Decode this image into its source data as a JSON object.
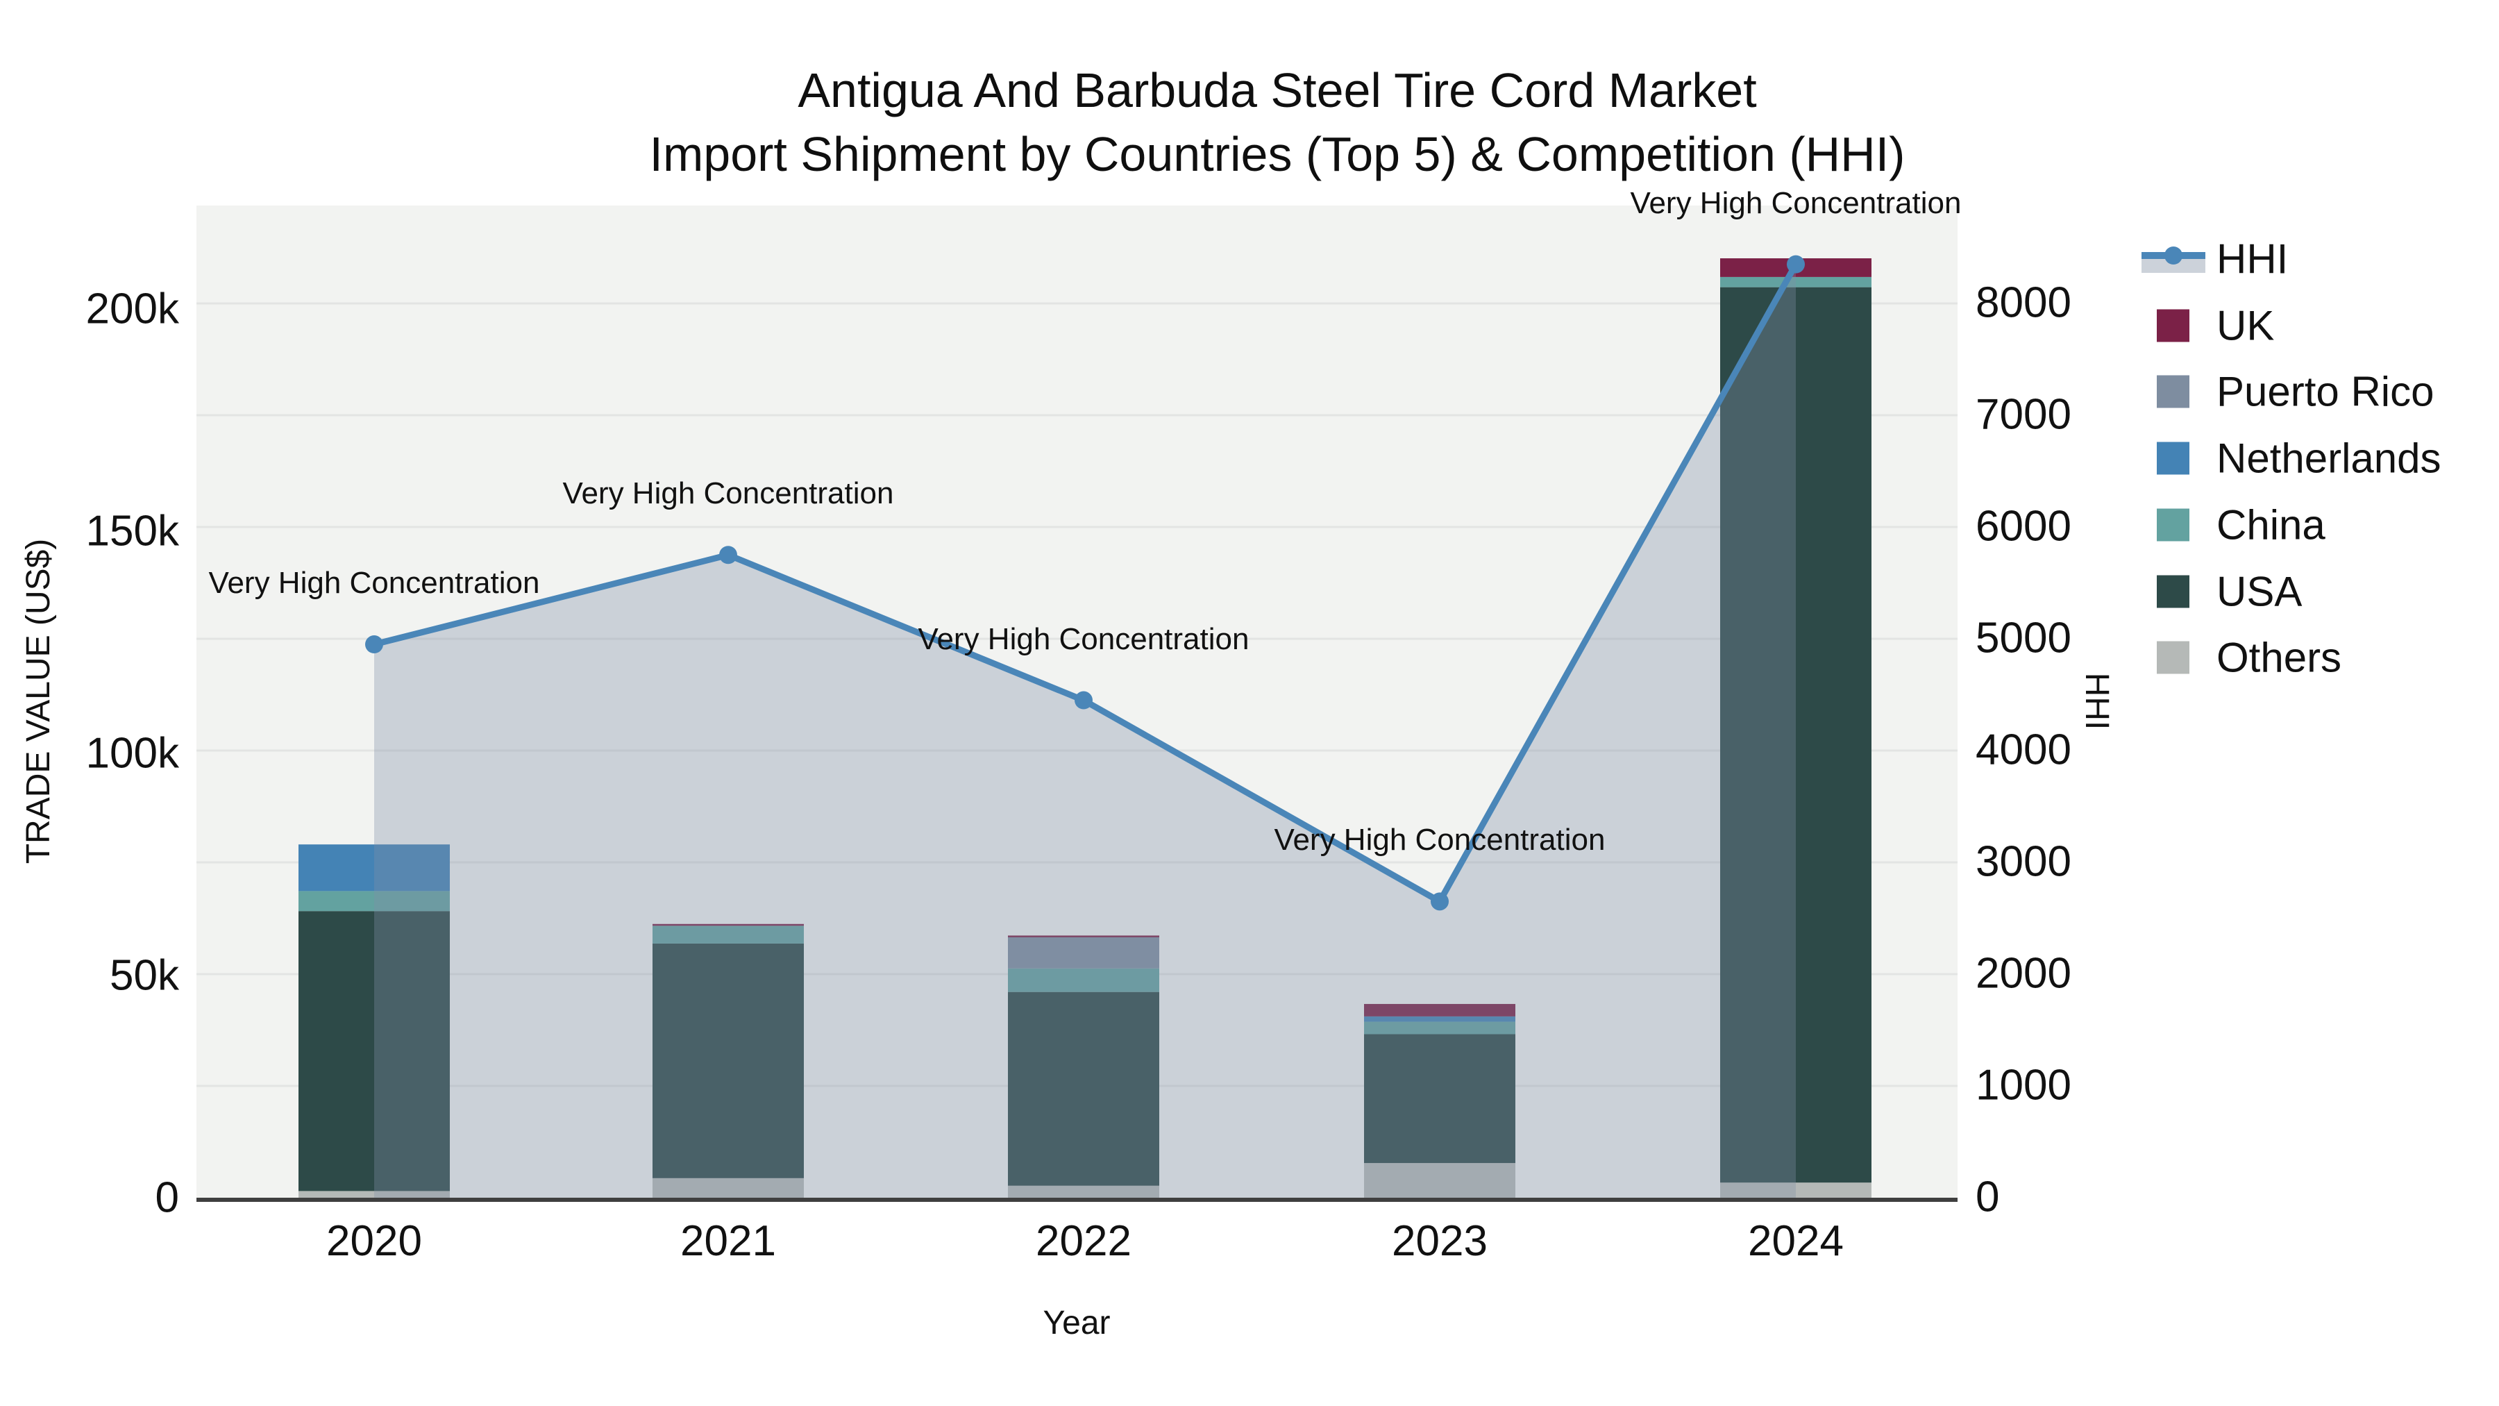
{
  "title": {
    "line1": "Antigua And Barbuda Steel Tire Cord Market",
    "line2": "Import Shipment by Countries (Top 5) & Competition (HHI)"
  },
  "axes": {
    "left": {
      "title": "TRADE VALUE (US$)",
      "tick_labels": [
        "0",
        "50k",
        "100k",
        "150k",
        "200k"
      ],
      "tick_values": [
        0,
        50000,
        100000,
        150000,
        200000
      ]
    },
    "right": {
      "title": "HHI",
      "tick_labels": [
        "0",
        "1000",
        "2000",
        "3000",
        "4000",
        "5000",
        "6000",
        "7000",
        "8000"
      ],
      "tick_values": [
        0,
        1000,
        2000,
        3000,
        4000,
        5000,
        6000,
        7000,
        8000
      ]
    },
    "x": {
      "title": "Year",
      "tick_labels": [
        "2020",
        "2021",
        "2022",
        "2023",
        "2024"
      ]
    }
  },
  "legend": {
    "items": [
      {
        "label": "HHI",
        "type": "line",
        "color": "#4a86b8"
      },
      {
        "label": "UK",
        "type": "swatch",
        "color": "#7b2147"
      },
      {
        "label": "Puerto Rico",
        "type": "swatch",
        "color": "#7e8da0"
      },
      {
        "label": "Netherlands",
        "type": "swatch",
        "color": "#4483b5"
      },
      {
        "label": "China",
        "type": "swatch",
        "color": "#63a2a0"
      },
      {
        "label": "USA",
        "type": "swatch",
        "color": "#2d4a48"
      },
      {
        "label": "Others",
        "type": "swatch",
        "color": "#b5b9b7"
      }
    ]
  },
  "chart_data": {
    "type": "bar",
    "subtype": "stacked-bars-with-line-overlay",
    "categories": [
      "2020",
      "2021",
      "2022",
      "2023",
      "2024"
    ],
    "series": [
      {
        "name": "Others",
        "axis": "left",
        "values": [
          1500,
          4400,
          2700,
          7800,
          3400
        ],
        "color": "#b5b9b7"
      },
      {
        "name": "USA",
        "axis": "left",
        "values": [
          63000,
          52800,
          43600,
          29000,
          201500
        ],
        "color": "#2d4a48"
      },
      {
        "name": "China",
        "axis": "left",
        "values": [
          4500,
          4000,
          5300,
          2800,
          2300
        ],
        "color": "#63a2a0"
      },
      {
        "name": "Netherlands",
        "axis": "left",
        "values": [
          10500,
          0,
          0,
          1200,
          0
        ],
        "color": "#4483b5"
      },
      {
        "name": "Puerto Rico",
        "axis": "left",
        "values": [
          0,
          0,
          7000,
          0,
          0
        ],
        "color": "#7e8da0"
      },
      {
        "name": "UK",
        "axis": "left",
        "values": [
          0,
          400,
          400,
          2800,
          4200
        ],
        "color": "#7b2147"
      }
    ],
    "line_series": {
      "name": "HHI",
      "axis": "right",
      "values": [
        4950,
        5750,
        4450,
        2650,
        8350
      ],
      "color": "#4a86b8",
      "area_fill": "rgba(130,145,168,0.34)"
    },
    "annotations": [
      "Very High Concentration",
      "Very High Concentration",
      "Very High Concentration",
      "Very High Concentration",
      "Very High Concentration"
    ],
    "title": "Antigua And Barbuda Steel Tire Cord Market — Import Shipment by Countries (Top 5) & Competition (HHI)",
    "xlabel": "Year",
    "ylabel_left": "TRADE VALUE (US$)",
    "ylabel_right": "HHI",
    "ylim_left": [
      0,
      223000
    ],
    "ylim_right": [
      0,
      8900
    ],
    "grid": true,
    "legend_position": "top-right"
  },
  "colors": {
    "plot_bg": "#f2f3f1",
    "grid": "#e3e4e3",
    "axis_line": "#3f3f3f",
    "hhi_line": "#4a86b8",
    "area_fill": "rgba(130,145,168,0.34)"
  }
}
